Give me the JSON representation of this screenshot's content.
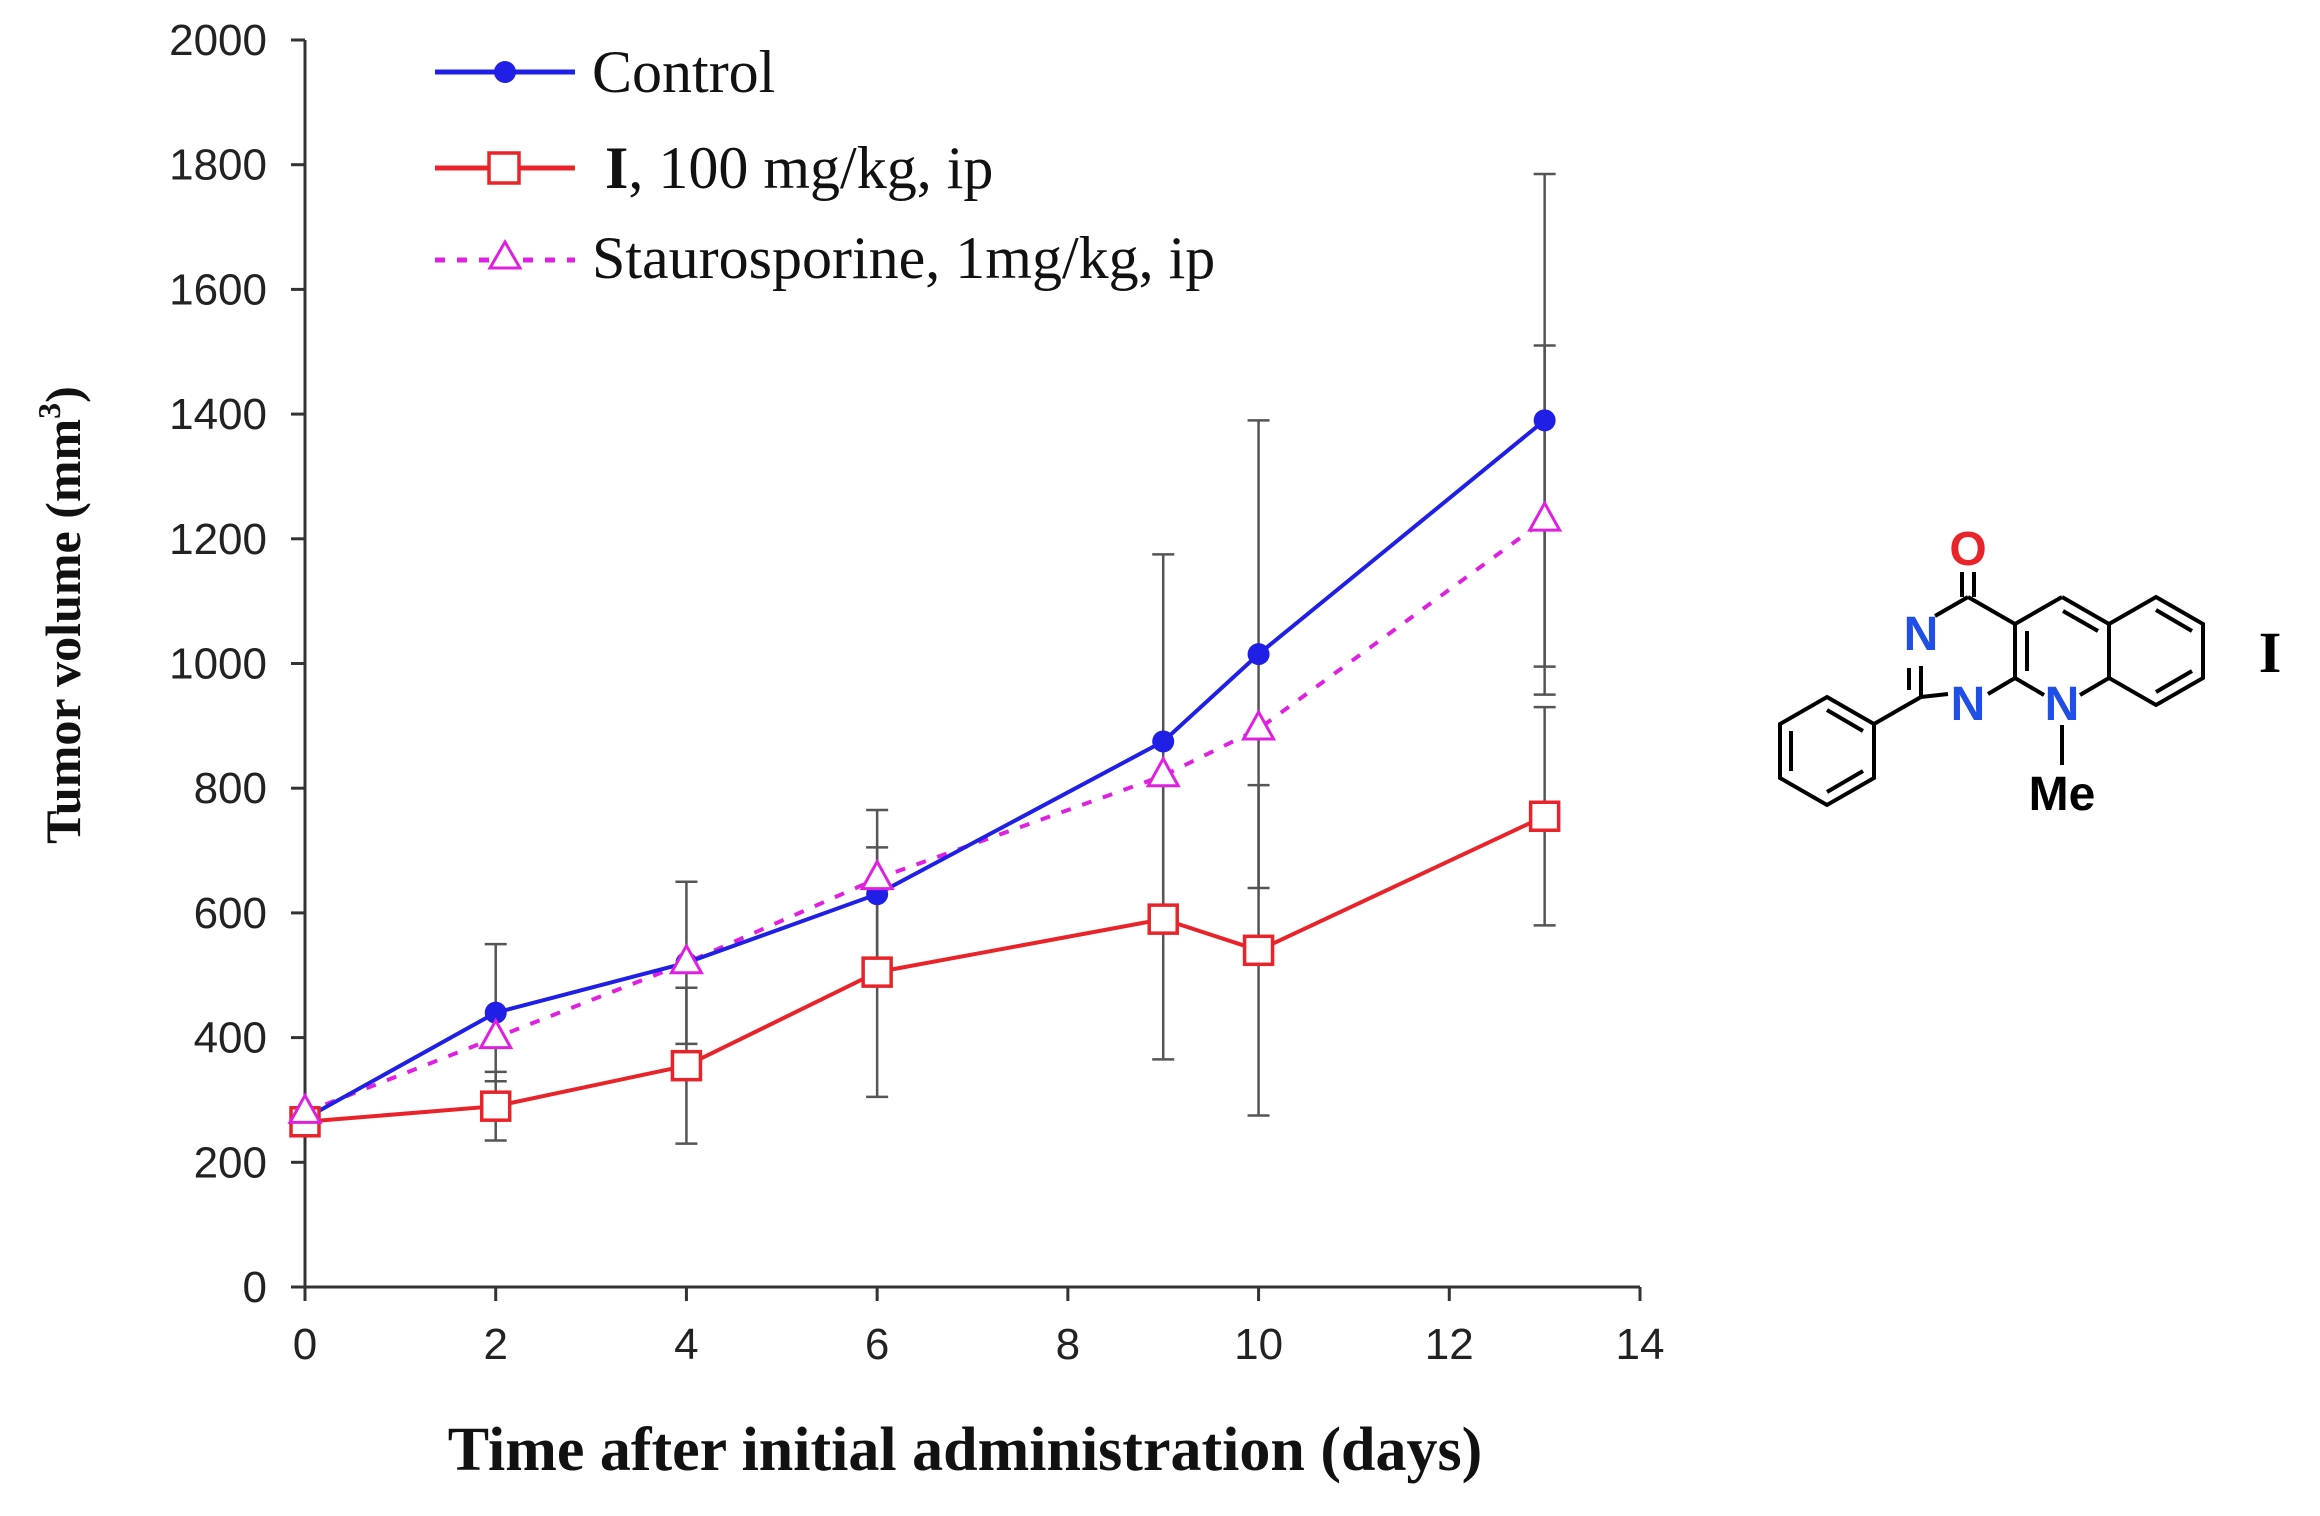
{
  "chart_data": {
    "type": "line",
    "title": "",
    "xlabel": "Time after initial administration (days)",
    "ylabel": {
      "main": "Tumor volume (mm",
      "superscript": "3",
      "close": ")"
    },
    "xlim": [
      0,
      14
    ],
    "ylim": [
      0,
      2000
    ],
    "xticks": [
      0,
      2,
      4,
      6,
      8,
      10,
      12,
      14
    ],
    "yticks": [
      0,
      200,
      400,
      600,
      800,
      1000,
      1200,
      1400,
      1600,
      1800,
      2000
    ],
    "grid": false,
    "legend_position": "top-left",
    "series": [
      {
        "name": "Control",
        "legend_label": "Control",
        "color": "#1f1fe6",
        "line_style": "solid",
        "marker": "filled-circle",
        "x": [
          0,
          2,
          4,
          6,
          9,
          10,
          13
        ],
        "y": [
          270,
          440,
          520,
          630,
          875,
          1015,
          1390
        ],
        "error": [
          null,
          110,
          130,
          135,
          300,
          375,
          395
        ]
      },
      {
        "name": "I, 100 mg/kg, ip",
        "legend_label_bold": "I",
        "legend_label_rest": ", 100 mg/kg, ip",
        "color": "#e8242a",
        "line_style": "solid",
        "marker": "open-square",
        "x": [
          0,
          2,
          4,
          6,
          9,
          10,
          13
        ],
        "y": [
          265,
          290,
          355,
          505,
          590,
          540,
          755
        ],
        "error": [
          null,
          55,
          125,
          200,
          225,
          265,
          175
        ]
      },
      {
        "name": "Staurosporine, 1mg/kg, ip",
        "legend_label": "Staurosporine, 1mg/kg, ip",
        "color": "#e020e0",
        "line_style": "dotted",
        "marker": "open-triangle",
        "x": [
          0,
          2,
          4,
          6,
          9,
          10,
          13
        ],
        "y": [
          280,
          400,
          520,
          655,
          820,
          895,
          1230
        ],
        "error": [
          null,
          null,
          null,
          null,
          null,
          null,
          280
        ]
      }
    ]
  },
  "structure": {
    "label": "I",
    "atoms": {
      "oxygen": "O",
      "n_upper": "N",
      "n_lower": "N",
      "n_methyl": "N",
      "methyl": "Me"
    },
    "colors": {
      "oxygen": "#e8242a",
      "nitrogen": "#1f4fe6",
      "methyl_n": "#1f4fe6",
      "bond": "#000000",
      "text": "#000000"
    }
  }
}
